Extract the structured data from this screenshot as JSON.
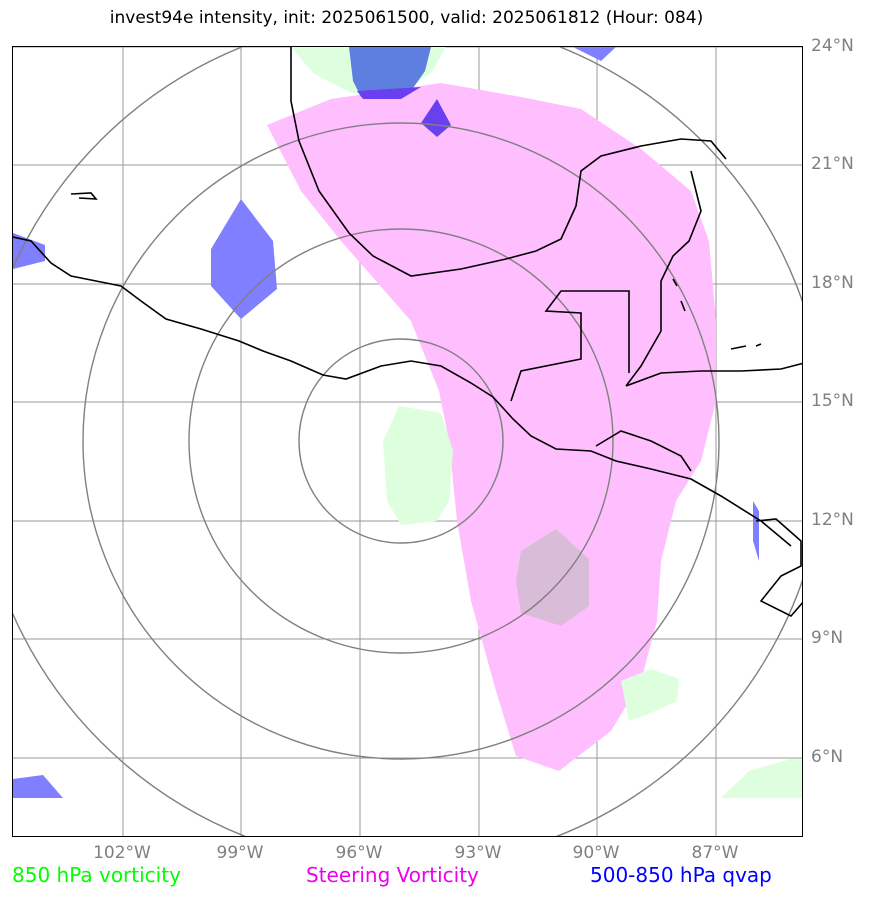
{
  "title": "invest94e intensity, init: 2025061500, valid: 2025061812 (Hour: 084)",
  "lat_labels": [
    "24°N",
    "21°N",
    "18°N",
    "15°N",
    "12°N",
    "9°N",
    "6°N"
  ],
  "lon_labels": [
    "102°W",
    "99°W",
    "96°W",
    "93°W",
    "90°W",
    "87°W"
  ],
  "legend": {
    "vorticity_850": "850 hPa vorticity",
    "steering": "Steering Vorticity",
    "qvap": "500-850 hPa qvap"
  },
  "colors": {
    "vorticity_850": "#00ff00",
    "steering": "#ee00ee",
    "qvap": "#0000ff",
    "steering_fill": "#ffbfff",
    "vorticity_fill": "#ddffdd",
    "qvap_fill": "#7f7fff",
    "grid": "#999999",
    "range_rings": "#808080",
    "coastline": "#000000"
  }
}
